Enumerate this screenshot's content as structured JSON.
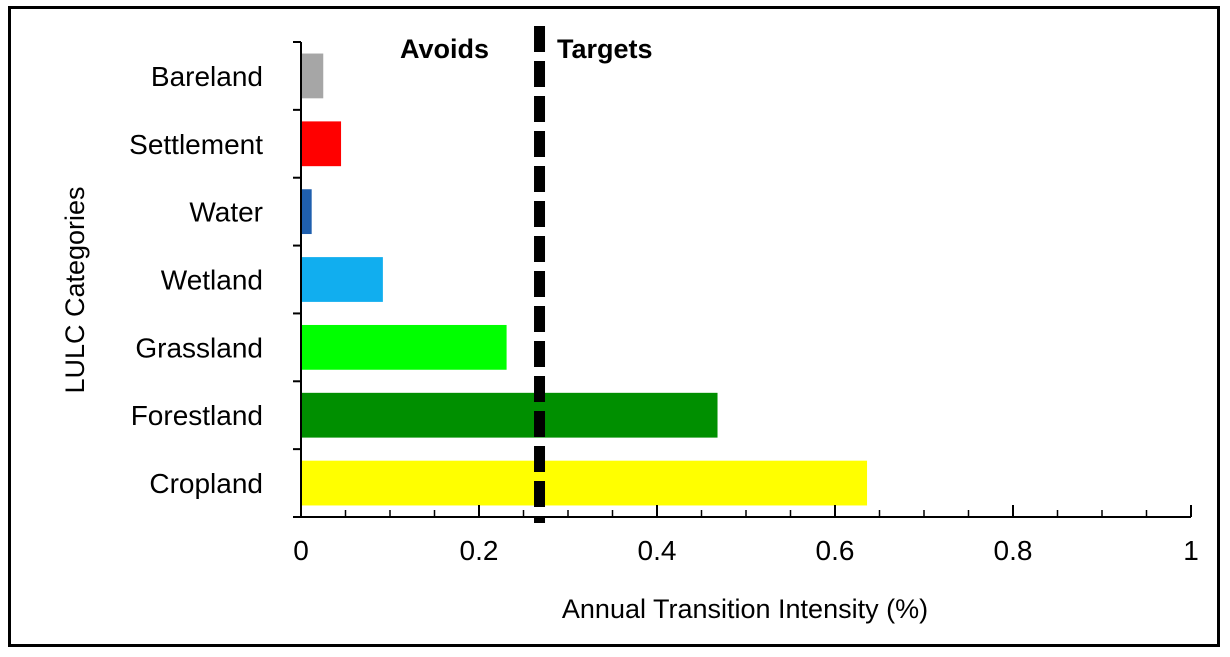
{
  "chart_data": {
    "type": "bar",
    "orientation": "horizontal",
    "categories": [
      "Bareland",
      "Settlement",
      "Water",
      "Wetland",
      "Grassland",
      "Forestland",
      "Cropland"
    ],
    "values": [
      0.025,
      0.045,
      0.012,
      0.092,
      0.231,
      0.468,
      0.636
    ],
    "colors": [
      "#a6a6a6",
      "#ff0000",
      "#1f5fae",
      "#11aeef",
      "#00ff00",
      "#008f00",
      "#ffff00"
    ],
    "xlabel": "Annual Transition Intensity (%)",
    "ylabel": "LULC Categories",
    "xlim": [
      0,
      1
    ],
    "xticks": [
      0,
      0.2,
      0.4,
      0.6,
      0.8,
      1
    ],
    "xtick_labels": [
      "0",
      "0.2",
      "0.4",
      "0.6",
      "0.8",
      "1"
    ],
    "minor_tick_step": 0.05,
    "reference_line": {
      "value": 0.268,
      "style": "dashed",
      "color": "#000000"
    },
    "annotations": {
      "left": "Avoids",
      "right": "Targets"
    },
    "grid": false
  }
}
